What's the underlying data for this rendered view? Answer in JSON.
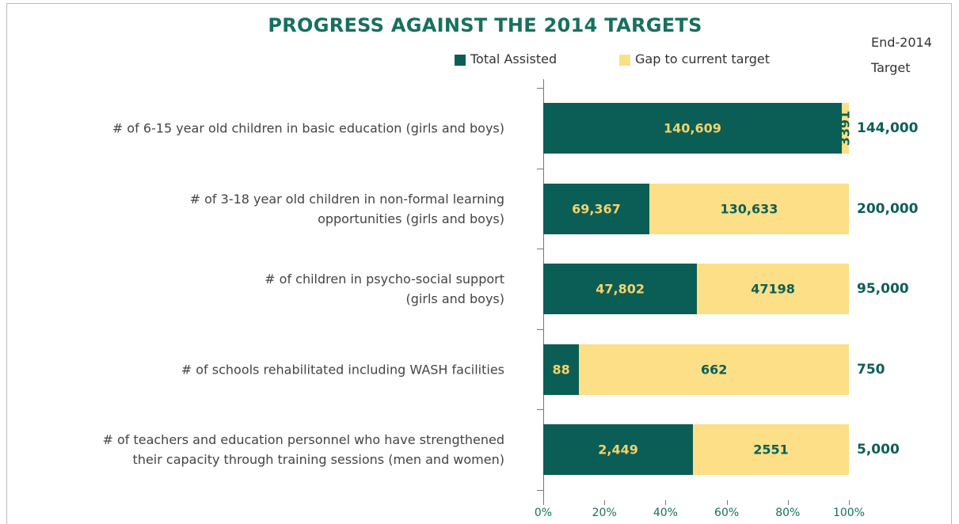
{
  "chart_data": {
    "type": "bar",
    "orientation": "horizontal",
    "stacked": "percent",
    "title": "PROGRESS AGAINST THE 2014 TARGETS",
    "categories": [
      "# of 6-15 year old children in basic education (girls and boys)",
      "# of 3-18 year old children in non-formal learning\nopportunities (girls and boys)",
      "# of children in psycho-social support\n(girls and boys)",
      "# of schools rehabilitated including WASH facilities",
      "# of teachers and education personnel who have strengthened\ntheir capacity through training sessions (men and women)"
    ],
    "series": [
      {
        "name": "Total Assisted",
        "color": "#0b5e55",
        "label_color": "#f3d36a",
        "values": [
          140609,
          69367,
          47802,
          88,
          2449
        ],
        "value_labels": [
          "140,609",
          "69,367",
          "47,802",
          "88",
          "2,449"
        ]
      },
      {
        "name": "Gap to current target",
        "color": "#fcdf86",
        "label_color": "#0d5f55",
        "values": [
          3391,
          130633,
          47198,
          662,
          2551
        ],
        "value_labels": [
          "3391",
          "130,633",
          "47198",
          "662",
          "2551"
        ]
      }
    ],
    "targets": {
      "header": "End-2014\nTarget",
      "values": [
        144000,
        200000,
        95000,
        750,
        5000
      ],
      "value_labels": [
        "144,000",
        "200,000",
        "95,000",
        "750",
        "5,000"
      ]
    },
    "xlim": [
      0,
      100
    ],
    "xticks": [
      {
        "value": 0,
        "label": "0%"
      },
      {
        "value": 20,
        "label": "20%"
      },
      {
        "value": 40,
        "label": "40%"
      },
      {
        "value": 60,
        "label": "60%"
      },
      {
        "value": 80,
        "label": "80%"
      },
      {
        "value": 100,
        "label": "100%"
      }
    ]
  }
}
